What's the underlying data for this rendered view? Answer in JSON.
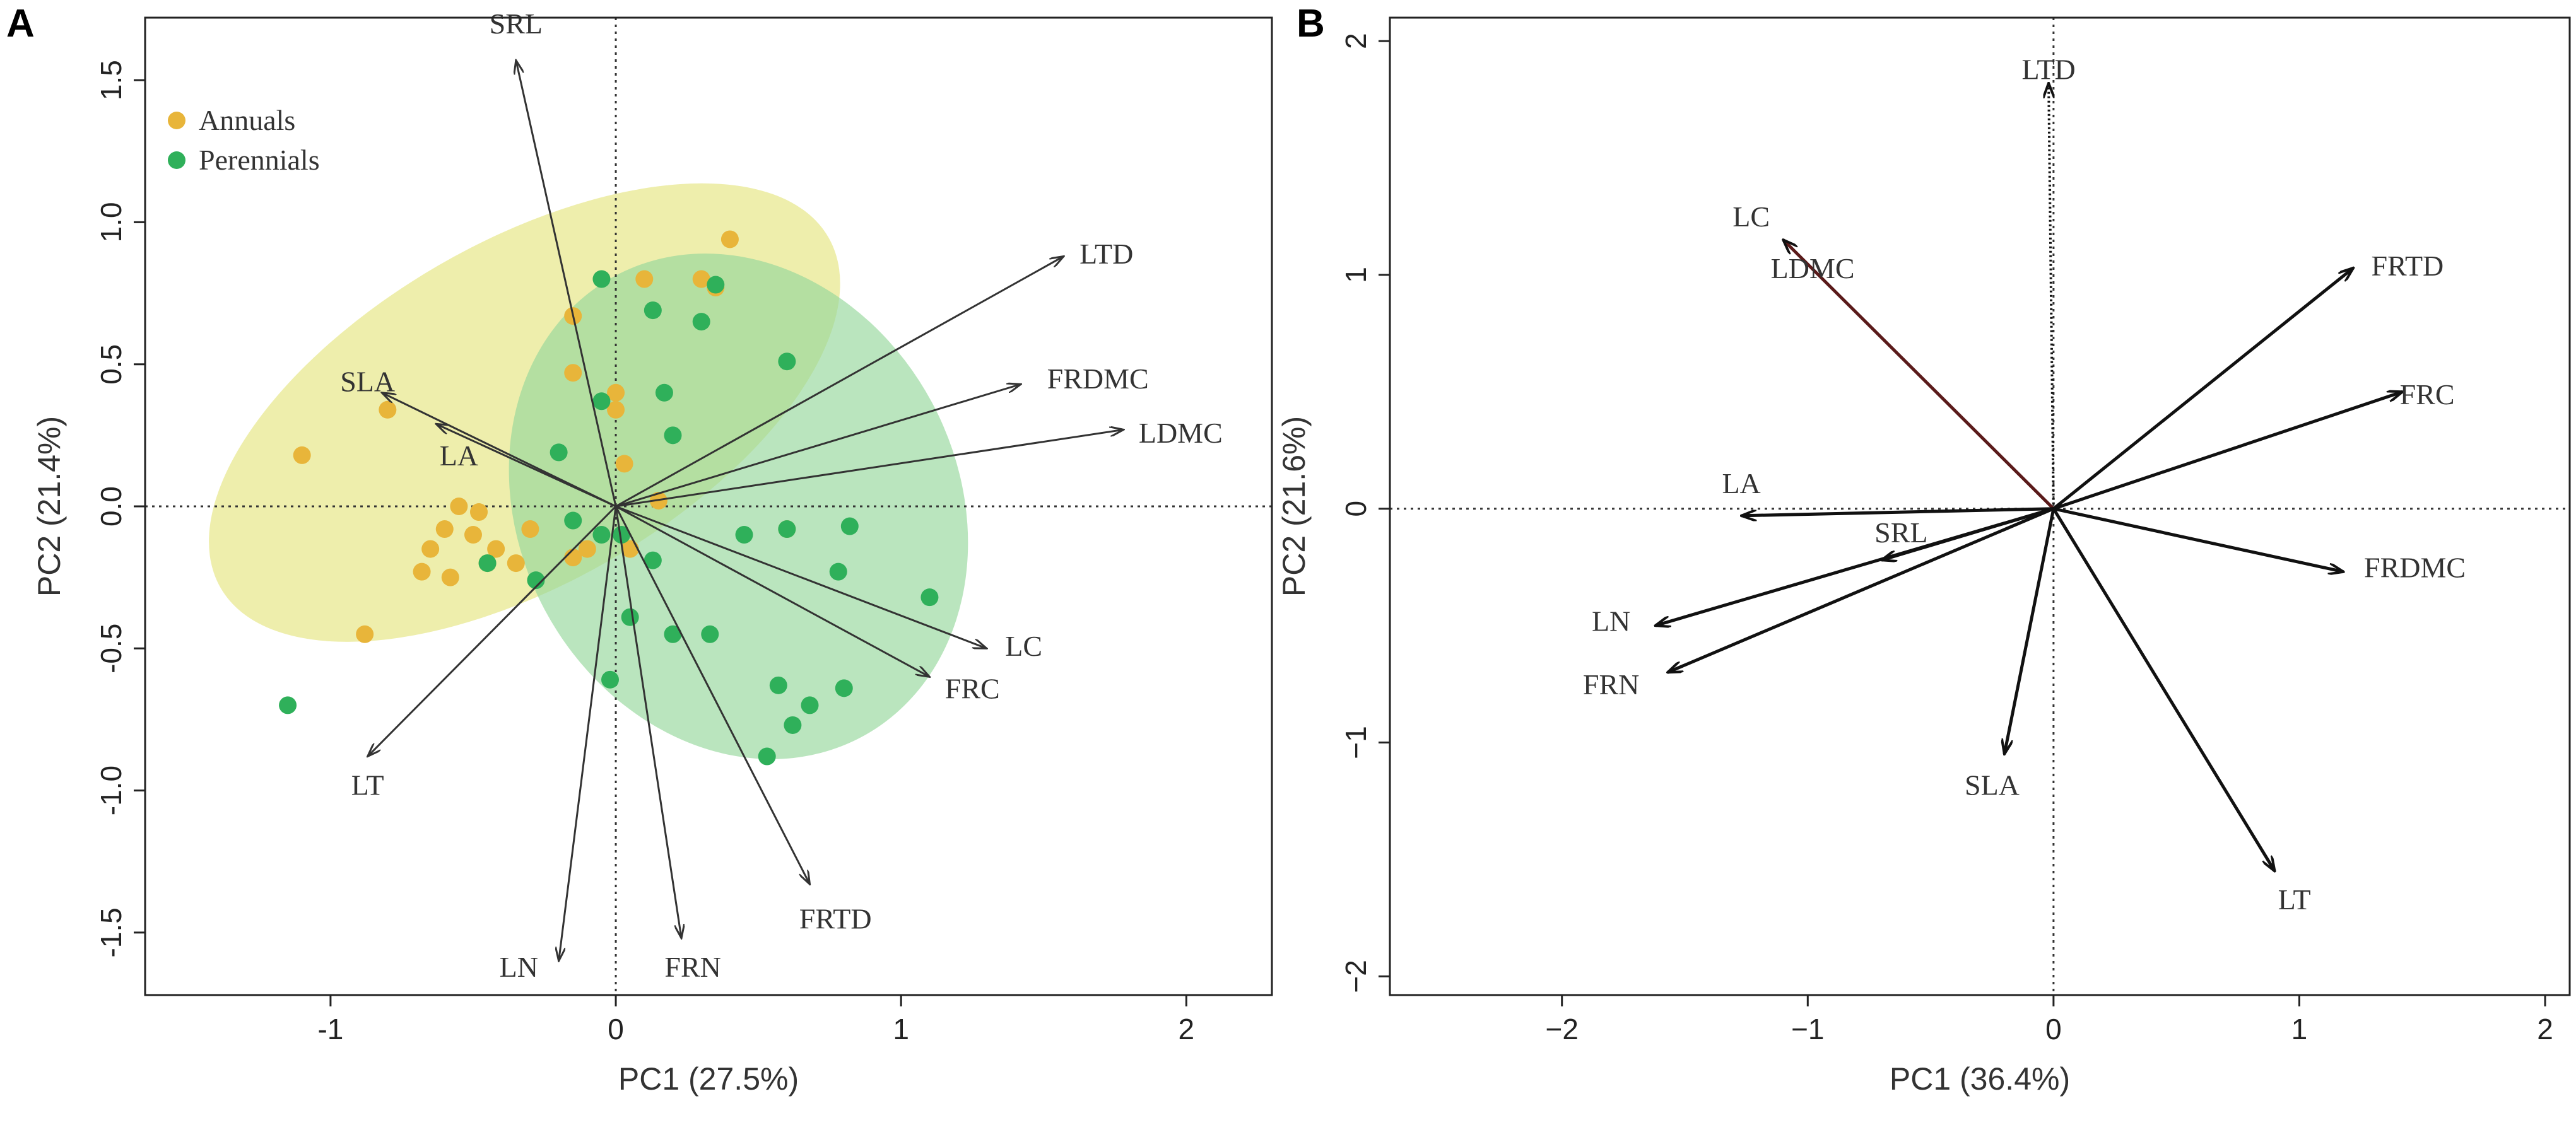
{
  "chart_data": [
    {
      "type": "scatter",
      "panel": "A",
      "xlabel": "PC1 (27.5%)",
      "ylabel": "PC2 (21.4%)",
      "xlim": [
        -1.65,
        2.3
      ],
      "ylim": [
        -1.72,
        1.72
      ],
      "xticks": [
        -1,
        0,
        1,
        2
      ],
      "yticks": [
        -1.5,
        -1.0,
        -0.5,
        0.0,
        0.5,
        1.0,
        1.5
      ],
      "ytick_labels": [
        "-1.5",
        "-1.0",
        "-0.5",
        "0.0",
        "0.5",
        "1.0",
        "1.5"
      ],
      "legend": {
        "placement": "top-left",
        "entries": [
          {
            "name": "Annuals",
            "color": "#e8b53a"
          },
          {
            "name": "Perennials",
            "color": "#2fb05a"
          }
        ]
      },
      "series": [
        {
          "name": "Annuals",
          "color": "#e8b53a",
          "points": [
            [
              0.4,
              0.94
            ],
            [
              0.1,
              0.8
            ],
            [
              0.3,
              0.8
            ],
            [
              0.35,
              0.77
            ],
            [
              -0.15,
              0.67
            ],
            [
              -0.15,
              0.47
            ],
            [
              0.0,
              0.4
            ],
            [
              0.0,
              0.34
            ],
            [
              -0.8,
              0.34
            ],
            [
              0.03,
              0.15
            ],
            [
              -1.1,
              0.18
            ],
            [
              -0.55,
              0.0
            ],
            [
              -0.48,
              -0.02
            ],
            [
              -0.6,
              -0.08
            ],
            [
              -0.5,
              -0.1
            ],
            [
              -0.3,
              -0.08
            ],
            [
              -0.42,
              -0.15
            ],
            [
              -0.65,
              -0.15
            ],
            [
              -0.45,
              -0.2
            ],
            [
              -0.35,
              -0.2
            ],
            [
              -0.58,
              -0.25
            ],
            [
              -0.68,
              -0.23
            ],
            [
              -0.15,
              -0.18
            ],
            [
              -0.1,
              -0.15
            ],
            [
              0.15,
              0.02
            ],
            [
              -0.88,
              -0.45
            ],
            [
              0.6,
              -0.08
            ],
            [
              0.05,
              -0.15
            ]
          ]
        },
        {
          "name": "Perennials",
          "color": "#2fb05a",
          "points": [
            [
              -0.05,
              0.8
            ],
            [
              0.13,
              0.69
            ],
            [
              0.3,
              0.65
            ],
            [
              0.35,
              0.78
            ],
            [
              0.6,
              0.51
            ],
            [
              0.17,
              0.4
            ],
            [
              -0.05,
              0.37
            ],
            [
              0.2,
              0.25
            ],
            [
              -0.2,
              0.19
            ],
            [
              0.45,
              -0.1
            ],
            [
              0.82,
              -0.07
            ],
            [
              0.6,
              -0.08
            ],
            [
              1.1,
              -0.32
            ],
            [
              0.78,
              -0.23
            ],
            [
              -0.15,
              -0.05
            ],
            [
              0.02,
              -0.1
            ],
            [
              -0.05,
              -0.1
            ],
            [
              0.13,
              -0.19
            ],
            [
              -0.28,
              -0.26
            ],
            [
              0.05,
              -0.39
            ],
            [
              0.2,
              -0.45
            ],
            [
              0.33,
              -0.45
            ],
            [
              0.57,
              -0.63
            ],
            [
              0.8,
              -0.64
            ],
            [
              0.68,
              -0.7
            ],
            [
              0.62,
              -0.77
            ],
            [
              0.53,
              -0.88
            ],
            [
              -0.02,
              -0.61
            ],
            [
              -0.45,
              -0.2
            ],
            [
              -1.15,
              -0.7
            ]
          ]
        }
      ],
      "ellipses": [
        {
          "group": "Annuals",
          "cx": -0.32,
          "cy": 0.33,
          "rx": 1.23,
          "ry": 0.6,
          "angle_deg": 30,
          "color": "#e5e580"
        },
        {
          "group": "Perennials",
          "cx": 0.43,
          "cy": 0.0,
          "rx": 0.77,
          "ry": 0.92,
          "angle_deg": 28,
          "color": "#95d79b"
        }
      ],
      "vectors": [
        {
          "name": "SRL",
          "x": -0.35,
          "y": 1.57,
          "label": [
            -0.35,
            1.7
          ]
        },
        {
          "name": "LTD",
          "x": 1.57,
          "y": 0.88,
          "label": [
            1.72,
            0.89
          ]
        },
        {
          "name": "FRDMC",
          "x": 1.42,
          "y": 0.43,
          "label": [
            1.69,
            0.45
          ]
        },
        {
          "name": "LDMC",
          "x": 1.78,
          "y": 0.27,
          "label": [
            1.98,
            0.26
          ]
        },
        {
          "name": "SLA",
          "x": -0.82,
          "y": 0.4,
          "label": [
            -0.87,
            0.44
          ]
        },
        {
          "name": "LA",
          "x": -0.63,
          "y": 0.29,
          "label": [
            -0.55,
            0.18
          ]
        },
        {
          "name": "LC",
          "x": 1.3,
          "y": -0.5,
          "label": [
            1.43,
            -0.49
          ]
        },
        {
          "name": "FRC",
          "x": 1.1,
          "y": -0.6,
          "label": [
            1.25,
            -0.64
          ]
        },
        {
          "name": "LT",
          "x": -0.87,
          "y": -0.88,
          "label": [
            -0.87,
            -0.98
          ]
        },
        {
          "name": "FRTD",
          "x": 0.68,
          "y": -1.33,
          "label": [
            0.77,
            -1.45
          ]
        },
        {
          "name": "LN",
          "x": -0.2,
          "y": -1.6,
          "label": [
            -0.34,
            -1.62
          ]
        },
        {
          "name": "FRN",
          "x": 0.23,
          "y": -1.52,
          "label": [
            0.27,
            -1.62
          ]
        }
      ]
    },
    {
      "type": "scatter",
      "panel": "B",
      "xlabel": "PC1 (36.4%)",
      "ylabel": "PC2 (21.6%)",
      "xlim": [
        -2.7,
        2.1
      ],
      "ylim": [
        -2.08,
        2.1
      ],
      "xticks": [
        -2,
        -1,
        0,
        1,
        2
      ],
      "xtick_labels": [
        "−2",
        "−1",
        "0",
        "1",
        "2"
      ],
      "yticks": [
        -2,
        -1,
        0,
        1,
        2
      ],
      "ytick_labels": [
        "−2",
        "−1",
        "0",
        "1",
        "2"
      ],
      "vectors": [
        {
          "name": "LTD",
          "x": -0.02,
          "y": 1.82,
          "label": [
            -0.02,
            1.88
          ],
          "dotted": true
        },
        {
          "name": "LC",
          "x": -1.1,
          "y": 1.15,
          "label": [
            -1.23,
            1.25
          ],
          "color": "#5a1a1a"
        },
        {
          "name": "LDMC",
          "x": -1.0,
          "y": 1.1,
          "label": [
            -0.98,
            1.03
          ],
          "hidden_arrow": true
        },
        {
          "name": "FRTD",
          "x": 1.22,
          "y": 1.03,
          "label": [
            1.44,
            1.04
          ]
        },
        {
          "name": "FRC",
          "x": 1.42,
          "y": 0.5,
          "label": [
            1.52,
            0.49
          ]
        },
        {
          "name": "LA",
          "x": -1.27,
          "y": -0.03,
          "label": [
            -1.27,
            0.11
          ]
        },
        {
          "name": "SRL",
          "x": -0.7,
          "y": -0.22,
          "label": [
            -0.62,
            -0.1
          ]
        },
        {
          "name": "FRDMC",
          "x": 1.18,
          "y": -0.27,
          "label": [
            1.47,
            -0.25
          ]
        },
        {
          "name": "LN",
          "x": -1.62,
          "y": -0.5,
          "label": [
            -1.8,
            -0.48
          ]
        },
        {
          "name": "FRN",
          "x": -1.57,
          "y": -0.7,
          "label": [
            -1.8,
            -0.75
          ]
        },
        {
          "name": "SLA",
          "x": -0.2,
          "y": -1.05,
          "label": [
            -0.25,
            -1.18
          ]
        },
        {
          "name": "LT",
          "x": 0.9,
          "y": -1.55,
          "label": [
            0.98,
            -1.67
          ]
        }
      ]
    }
  ]
}
